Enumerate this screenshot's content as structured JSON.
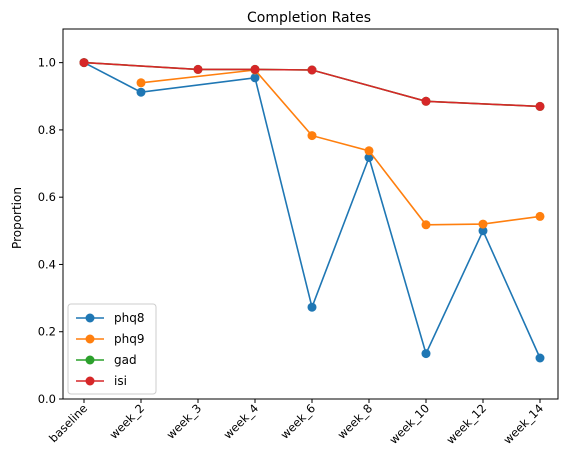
{
  "chart_data": {
    "type": "line",
    "title": "Completion Rates",
    "xlabel": "",
    "ylabel": "Proportion",
    "ylim": [
      0.0,
      1.1
    ],
    "yticks": [
      0.0,
      0.2,
      0.4,
      0.6,
      0.8,
      1.0
    ],
    "ytick_labels": [
      "0.0",
      "0.2",
      "0.4",
      "0.6",
      "0.8",
      "1.0"
    ],
    "categories": [
      "baseline",
      "week_2",
      "week_3",
      "week_4",
      "week_6",
      "week_8",
      "week_10",
      "week_12",
      "week_14"
    ],
    "legend_position": "lower-left",
    "grid": false,
    "series": [
      {
        "name": "phq8",
        "color": "#1f77b4",
        "values": [
          1.0,
          0.912,
          null,
          0.955,
          0.273,
          0.718,
          0.135,
          0.5,
          0.122
        ]
      },
      {
        "name": "phq9",
        "color": "#ff7f0e",
        "values": [
          null,
          0.94,
          null,
          0.978,
          0.783,
          0.738,
          0.518,
          0.52,
          0.543
        ]
      },
      {
        "name": "gad",
        "color": "#2ca02c",
        "values": [
          1.0,
          null,
          0.98,
          0.98,
          0.978,
          null,
          0.885,
          null,
          0.87
        ]
      },
      {
        "name": "isi",
        "color": "#d62728",
        "values": [
          1.0,
          null,
          0.98,
          0.98,
          0.978,
          null,
          0.885,
          null,
          0.87
        ]
      }
    ]
  }
}
